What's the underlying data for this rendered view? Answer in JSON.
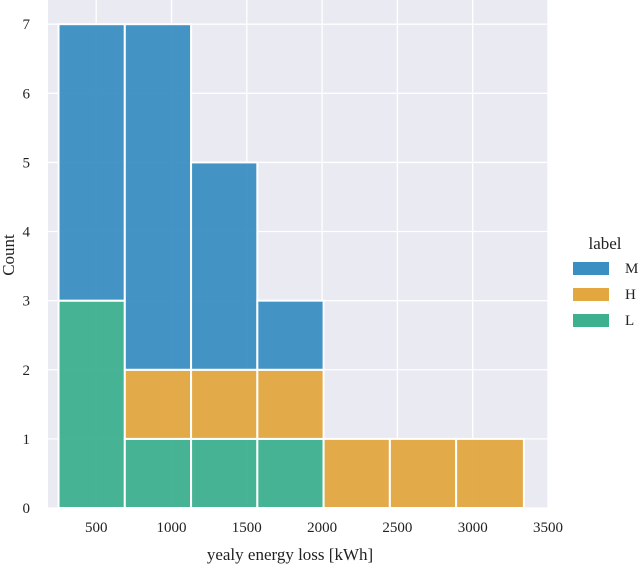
{
  "chart_data": {
    "type": "bar",
    "subtype": "stacked-histogram",
    "xlabel": "yealy energy loss [kWh]",
    "ylabel": "Count",
    "xlim": [
      180,
      3500
    ],
    "ylim": [
      0,
      7.35
    ],
    "xticks": [
      500,
      1000,
      1500,
      2000,
      2500,
      3000,
      3500
    ],
    "yticks": [
      0,
      1,
      2,
      3,
      4,
      5,
      6,
      7
    ],
    "grid": true,
    "legend": {
      "title": "label",
      "placement": "right"
    },
    "bin_edges": [
      250,
      690,
      1130,
      1570,
      2010,
      2450,
      2890,
      3340
    ],
    "stack_order": [
      "L",
      "H",
      "M"
    ],
    "series": [
      {
        "name": "M",
        "color": "#3a8fc2",
        "values": [
          4,
          5,
          3,
          1,
          0,
          0,
          0
        ]
      },
      {
        "name": "H",
        "color": "#e3a73f",
        "values": [
          0,
          1,
          1,
          1,
          1,
          1,
          1
        ]
      },
      {
        "name": "L",
        "color": "#3eb08f",
        "values": [
          3,
          1,
          1,
          1,
          0,
          0,
          0
        ]
      }
    ],
    "plot_background": "#eaeaf2"
  }
}
